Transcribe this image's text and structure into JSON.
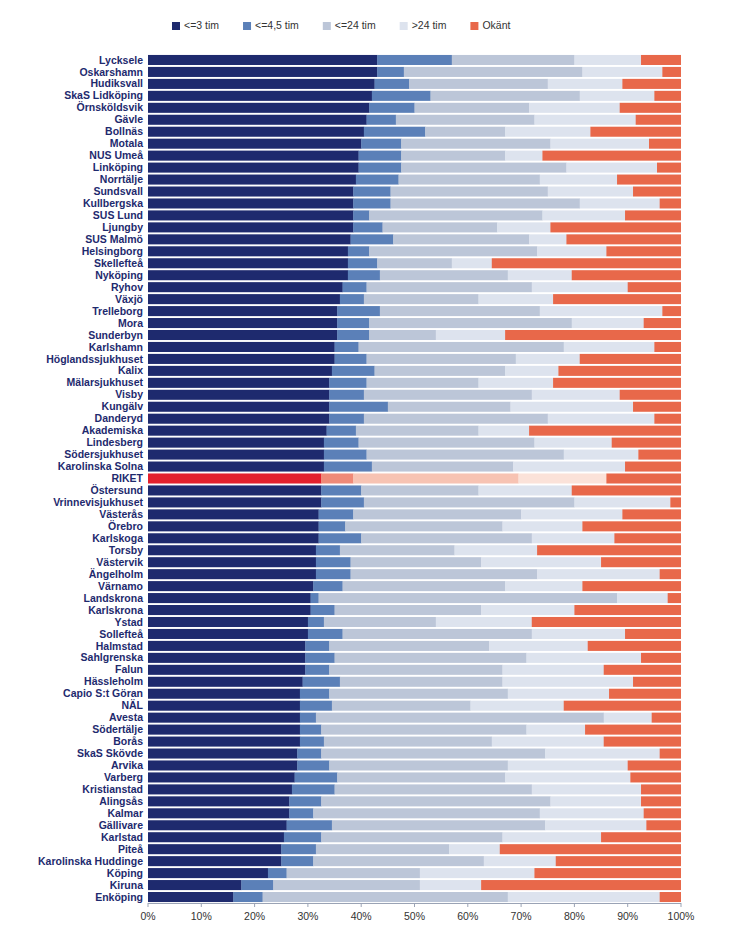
{
  "chart_data": {
    "type": "bar",
    "orientation": "horizontal",
    "stacked": true,
    "grid": false,
    "legend": "top",
    "xlim": [
      0,
      100
    ],
    "xticks": [
      {
        "value": 0,
        "label": "0%"
      },
      {
        "value": 10,
        "label": "10%"
      },
      {
        "value": 20,
        "label": "20%"
      },
      {
        "value": 30,
        "label": "30%"
      },
      {
        "value": 40,
        "label": "40%"
      },
      {
        "value": 50,
        "label": "50%"
      },
      {
        "value": 60,
        "label": "60%"
      },
      {
        "value": 70,
        "label": "70%"
      },
      {
        "value": 80,
        "label": "80%"
      },
      {
        "value": 90,
        "label": "90%"
      },
      {
        "value": 100,
        "label": "100%"
      }
    ],
    "categories": [
      "Lycksele",
      "Oskarshamn",
      "Hudiksvall",
      "SkaS Lidköping",
      "Örnsköldsvik",
      "Gävle",
      "Bollnäs",
      "Motala",
      "NUS Umeå",
      "Linköping",
      "Norrtälje",
      "Sundsvall",
      "Kullbergska",
      "SUS Lund",
      "Ljungby",
      "SUS Malmö",
      "Helsingborg",
      "Skellefteå",
      "Nyköping",
      "Ryhov",
      "Växjö",
      "Trelleborg",
      "Mora",
      "Sunderbyn",
      "Karlshamn",
      "Höglandssjukhuset",
      "Kalix",
      "Mälarsjukhuset",
      "Visby",
      "Kungälv",
      "Danderyd",
      "Akademiska",
      "Lindesberg",
      "Södersjukhuset",
      "Karolinska Solna",
      "RIKET",
      "Östersund",
      "Vrinnevisjukhuset",
      "Västerås",
      "Örebro",
      "Karlskoga",
      "Torsby",
      "Västervik",
      "Ängelholm",
      "Värnamo",
      "Landskrona",
      "Karlskrona",
      "Ystad",
      "Sollefteå",
      "Halmstad",
      "Sahlgrenska",
      "Falun",
      "Hässleholm",
      "Capio S:t Göran",
      "NÄL",
      "Avesta",
      "Södertälje",
      "Borås",
      "SkaS Skövde",
      "Arvika",
      "Varberg",
      "Kristianstad",
      "Alingsås",
      "Kalmar",
      "Gällivare",
      "Karlstad",
      "Piteå",
      "Karolinska Huddinge",
      "Köping",
      "Kiruna",
      "Enköping"
    ],
    "series": [
      {
        "name": "<=3 tim",
        "color": "#1e2a6e",
        "values": [
          43,
          43,
          42.5,
          42,
          41.5,
          41,
          40.5,
          40,
          39.5,
          39.5,
          39,
          38.5,
          38.5,
          38.5,
          38.5,
          38,
          37.5,
          37.5,
          37.5,
          36.5,
          36,
          35.5,
          35.5,
          35.5,
          35,
          35,
          34.5,
          34,
          34,
          34,
          34,
          33.5,
          33,
          33,
          33,
          32.5,
          32.5,
          32.5,
          32,
          32,
          32,
          31.5,
          31.5,
          31.5,
          31,
          30.5,
          30.5,
          30,
          30,
          29.5,
          29.5,
          29.5,
          29,
          28.5,
          28.5,
          28.5,
          28.5,
          28.5,
          28,
          28,
          27.5,
          27,
          26.5,
          26.5,
          26,
          25.5,
          25,
          25,
          22.5,
          17.5,
          16
        ],
        "colors": [
          "#1e2a6e",
          "#1e2a6e",
          "#1e2a6e",
          "#1e2a6e",
          "#1e2a6e",
          "#1e2a6e",
          "#1e2a6e",
          "#1e2a6e",
          "#1e2a6e",
          "#1e2a6e",
          "#1e2a6e",
          "#1e2a6e",
          "#1e2a6e",
          "#1e2a6e",
          "#1e2a6e",
          "#1e2a6e",
          "#1e2a6e",
          "#1e2a6e",
          "#1e2a6e",
          "#1e2a6e",
          "#1e2a6e",
          "#1e2a6e",
          "#1e2a6e",
          "#1e2a6e",
          "#1e2a6e",
          "#1e2a6e",
          "#1e2a6e",
          "#1e2a6e",
          "#1e2a6e",
          "#1e2a6e",
          "#1e2a6e",
          "#1e2a6e",
          "#1e2a6e",
          "#1e2a6e",
          "#1e2a6e",
          "#e3202d",
          "#1e2a6e",
          "#1e2a6e",
          "#1e2a6e",
          "#1e2a6e",
          "#1e2a6e",
          "#1e2a6e",
          "#1e2a6e",
          "#1e2a6e",
          "#1e2a6e",
          "#1e2a6e",
          "#1e2a6e",
          "#1e2a6e",
          "#1e2a6e",
          "#1e2a6e",
          "#1e2a6e",
          "#1e2a6e",
          "#1e2a6e",
          "#1e2a6e",
          "#1e2a6e",
          "#1e2a6e",
          "#1e2a6e",
          "#1e2a6e",
          "#1e2a6e",
          "#1e2a6e",
          "#1e2a6e",
          "#1e2a6e",
          "#1e2a6e",
          "#1e2a6e",
          "#1e2a6e",
          "#1e2a6e",
          "#1e2a6e",
          "#1e2a6e",
          "#1e2a6e",
          "#1e2a6e",
          "#1e2a6e"
        ]
      },
      {
        "name": "<=4,5 tim",
        "color": "#5b80b8",
        "values": [
          14,
          5,
          6.5,
          11,
          8.5,
          5.5,
          11.5,
          7.5,
          8,
          8,
          8,
          7,
          7,
          3,
          5.5,
          8,
          4,
          5.5,
          6,
          4.5,
          4.5,
          8,
          6,
          6,
          4.5,
          6,
          8,
          7,
          6.5,
          11,
          6.5,
          5.5,
          6.5,
          8,
          9,
          6,
          7.5,
          8,
          6.5,
          5,
          8,
          4.5,
          6.5,
          6.5,
          5.5,
          1.5,
          4.5,
          3,
          6.5,
          4.5,
          5.5,
          4.5,
          7,
          5.5,
          6,
          3,
          4,
          4.5,
          4.5,
          6,
          8,
          8,
          6,
          4.5,
          8.5,
          7,
          6.5,
          6,
          3.5,
          6,
          5.5
        ],
        "colors": [
          "#5b80b8",
          "#5b80b8",
          "#5b80b8",
          "#5b80b8",
          "#5b80b8",
          "#5b80b8",
          "#5b80b8",
          "#5b80b8",
          "#5b80b8",
          "#5b80b8",
          "#5b80b8",
          "#5b80b8",
          "#5b80b8",
          "#5b80b8",
          "#5b80b8",
          "#5b80b8",
          "#5b80b8",
          "#5b80b8",
          "#5b80b8",
          "#5b80b8",
          "#5b80b8",
          "#5b80b8",
          "#5b80b8",
          "#5b80b8",
          "#5b80b8",
          "#5b80b8",
          "#5b80b8",
          "#5b80b8",
          "#5b80b8",
          "#5b80b8",
          "#5b80b8",
          "#5b80b8",
          "#5b80b8",
          "#5b80b8",
          "#5b80b8",
          "#ef8a78",
          "#5b80b8",
          "#5b80b8",
          "#5b80b8",
          "#5b80b8",
          "#5b80b8",
          "#5b80b8",
          "#5b80b8",
          "#5b80b8",
          "#5b80b8",
          "#5b80b8",
          "#5b80b8",
          "#5b80b8",
          "#5b80b8",
          "#5b80b8",
          "#5b80b8",
          "#5b80b8",
          "#5b80b8",
          "#5b80b8",
          "#5b80b8",
          "#5b80b8",
          "#5b80b8",
          "#5b80b8",
          "#5b80b8",
          "#5b80b8",
          "#5b80b8",
          "#5b80b8",
          "#5b80b8",
          "#5b80b8",
          "#5b80b8",
          "#5b80b8",
          "#5b80b8",
          "#5b80b8",
          "#5b80b8",
          "#5b80b8",
          "#5b80b8"
        ]
      },
      {
        "name": "<=24 tim",
        "color": "#bcc6d8",
        "values": [
          23,
          33.5,
          26,
          28,
          21.5,
          26,
          15,
          28,
          19.5,
          31,
          26.5,
          29.5,
          35.5,
          32.5,
          21.5,
          25.5,
          31.5,
          14,
          24,
          31,
          21.5,
          30,
          38,
          12.5,
          38.5,
          28,
          24.5,
          21,
          31.5,
          23,
          34.5,
          23,
          33,
          37,
          26.5,
          31,
          22,
          39.5,
          31.5,
          29.5,
          32,
          21.5,
          24.5,
          35,
          30.5,
          56,
          27.5,
          21,
          35.5,
          30,
          36,
          32.5,
          30.5,
          33.5,
          26,
          54,
          38.5,
          31.5,
          42,
          33.5,
          31.5,
          37,
          43,
          42.5,
          40,
          34,
          25,
          32,
          25,
          27.5,
          46
        ],
        "colors": [
          "#bcc6d8",
          "#bcc6d8",
          "#bcc6d8",
          "#bcc6d8",
          "#bcc6d8",
          "#bcc6d8",
          "#bcc6d8",
          "#bcc6d8",
          "#bcc6d8",
          "#bcc6d8",
          "#bcc6d8",
          "#bcc6d8",
          "#bcc6d8",
          "#bcc6d8",
          "#bcc6d8",
          "#bcc6d8",
          "#bcc6d8",
          "#bcc6d8",
          "#bcc6d8",
          "#bcc6d8",
          "#bcc6d8",
          "#bcc6d8",
          "#bcc6d8",
          "#bcc6d8",
          "#bcc6d8",
          "#bcc6d8",
          "#bcc6d8",
          "#bcc6d8",
          "#bcc6d8",
          "#bcc6d8",
          "#bcc6d8",
          "#bcc6d8",
          "#bcc6d8",
          "#bcc6d8",
          "#bcc6d8",
          "#f7c3b3",
          "#bcc6d8",
          "#bcc6d8",
          "#bcc6d8",
          "#bcc6d8",
          "#bcc6d8",
          "#bcc6d8",
          "#bcc6d8",
          "#bcc6d8",
          "#bcc6d8",
          "#bcc6d8",
          "#bcc6d8",
          "#bcc6d8",
          "#bcc6d8",
          "#bcc6d8",
          "#bcc6d8",
          "#bcc6d8",
          "#bcc6d8",
          "#bcc6d8",
          "#bcc6d8",
          "#bcc6d8",
          "#bcc6d8",
          "#bcc6d8",
          "#bcc6d8",
          "#bcc6d8",
          "#bcc6d8",
          "#bcc6d8",
          "#bcc6d8",
          "#bcc6d8",
          "#bcc6d8",
          "#bcc6d8",
          "#bcc6d8",
          "#bcc6d8",
          "#bcc6d8",
          "#bcc6d8",
          "#bcc6d8"
        ]
      },
      {
        "name": ">24 tim",
        "color": "#dde3ee",
        "values": [
          12.5,
          15,
          14,
          14,
          17,
          19,
          16,
          18.5,
          7,
          17,
          14.5,
          16,
          15,
          15.5,
          10,
          7,
          13,
          7.5,
          12,
          18,
          14,
          23,
          13.5,
          13,
          17,
          12,
          10,
          14,
          16.5,
          23,
          20,
          9.5,
          14.5,
          14,
          21,
          16.5,
          17.5,
          18,
          19,
          15,
          15.5,
          15.5,
          22.5,
          23,
          14.5,
          9.5,
          17.5,
          18,
          17.5,
          18.5,
          21.5,
          19,
          24.5,
          19,
          17.5,
          9,
          11,
          21,
          21.5,
          22.5,
          23.5,
          20.5,
          17,
          19.5,
          19,
          18.5,
          9.5,
          13.5,
          21.5,
          11.5,
          28.5
        ],
        "colors": [
          "#dde3ee",
          "#dde3ee",
          "#dde3ee",
          "#dde3ee",
          "#dde3ee",
          "#dde3ee",
          "#dde3ee",
          "#dde3ee",
          "#dde3ee",
          "#dde3ee",
          "#dde3ee",
          "#dde3ee",
          "#dde3ee",
          "#dde3ee",
          "#dde3ee",
          "#dde3ee",
          "#dde3ee",
          "#dde3ee",
          "#dde3ee",
          "#dde3ee",
          "#dde3ee",
          "#dde3ee",
          "#dde3ee",
          "#dde3ee",
          "#dde3ee",
          "#dde3ee",
          "#dde3ee",
          "#dde3ee",
          "#dde3ee",
          "#dde3ee",
          "#dde3ee",
          "#dde3ee",
          "#dde3ee",
          "#dde3ee",
          "#dde3ee",
          "#fbe2d9",
          "#dde3ee",
          "#dde3ee",
          "#dde3ee",
          "#dde3ee",
          "#dde3ee",
          "#dde3ee",
          "#dde3ee",
          "#dde3ee",
          "#dde3ee",
          "#dde3ee",
          "#dde3ee",
          "#dde3ee",
          "#dde3ee",
          "#dde3ee",
          "#dde3ee",
          "#dde3ee",
          "#dde3ee",
          "#dde3ee",
          "#dde3ee",
          "#dde3ee",
          "#dde3ee",
          "#dde3ee",
          "#dde3ee",
          "#dde3ee",
          "#dde3ee",
          "#dde3ee",
          "#dde3ee",
          "#dde3ee",
          "#dde3ee",
          "#dde3ee",
          "#dde3ee",
          "#dde3ee",
          "#dde3ee",
          "#dde3ee",
          "#dde3ee"
        ]
      },
      {
        "name": "Okänt",
        "color": "#e8684a",
        "values": [
          7.5,
          3.5,
          11,
          5,
          11.5,
          8.5,
          17,
          6,
          26,
          4.5,
          12,
          9,
          4,
          10.5,
          24.5,
          21.5,
          14,
          35.5,
          20.5,
          10,
          24,
          3.5,
          7,
          33,
          5,
          19,
          23,
          24,
          11.5,
          9,
          5,
          28.5,
          13,
          8,
          10.5,
          14,
          20.5,
          2,
          11,
          18.5,
          12.5,
          27,
          15,
          4,
          18.5,
          2.5,
          20,
          28,
          10.5,
          17.5,
          7.5,
          14.5,
          9,
          13.5,
          22,
          5.5,
          18,
          14.5,
          4,
          10,
          9.5,
          7.5,
          7.5,
          7,
          6.5,
          15,
          34,
          23.5,
          27.5,
          37.5,
          4
        ],
        "colors": [
          "#e8684a",
          "#e8684a",
          "#e8684a",
          "#e8684a",
          "#e8684a",
          "#e8684a",
          "#e8684a",
          "#e8684a",
          "#e8684a",
          "#e8684a",
          "#e8684a",
          "#e8684a",
          "#e8684a",
          "#e8684a",
          "#e8684a",
          "#e8684a",
          "#e8684a",
          "#e8684a",
          "#e8684a",
          "#e8684a",
          "#e8684a",
          "#e8684a",
          "#e8684a",
          "#e8684a",
          "#e8684a",
          "#e8684a",
          "#e8684a",
          "#e8684a",
          "#e8684a",
          "#e8684a",
          "#e8684a",
          "#e8684a",
          "#e8684a",
          "#e8684a",
          "#e8684a",
          "#e8684a",
          "#e8684a",
          "#e8684a",
          "#e8684a",
          "#e8684a",
          "#e8684a",
          "#e8684a",
          "#e8684a",
          "#e8684a",
          "#e8684a",
          "#e8684a",
          "#e8684a",
          "#e8684a",
          "#e8684a",
          "#e8684a",
          "#e8684a",
          "#e8684a",
          "#e8684a",
          "#e8684a",
          "#e8684a",
          "#e8684a",
          "#e8684a",
          "#e8684a",
          "#e8684a",
          "#e8684a",
          "#e8684a",
          "#e8684a",
          "#e8684a",
          "#e8684a",
          "#e8684a",
          "#e8684a",
          "#e8684a",
          "#e8684a",
          "#e8684a",
          "#e8684a",
          "#e8684a"
        ]
      }
    ]
  }
}
